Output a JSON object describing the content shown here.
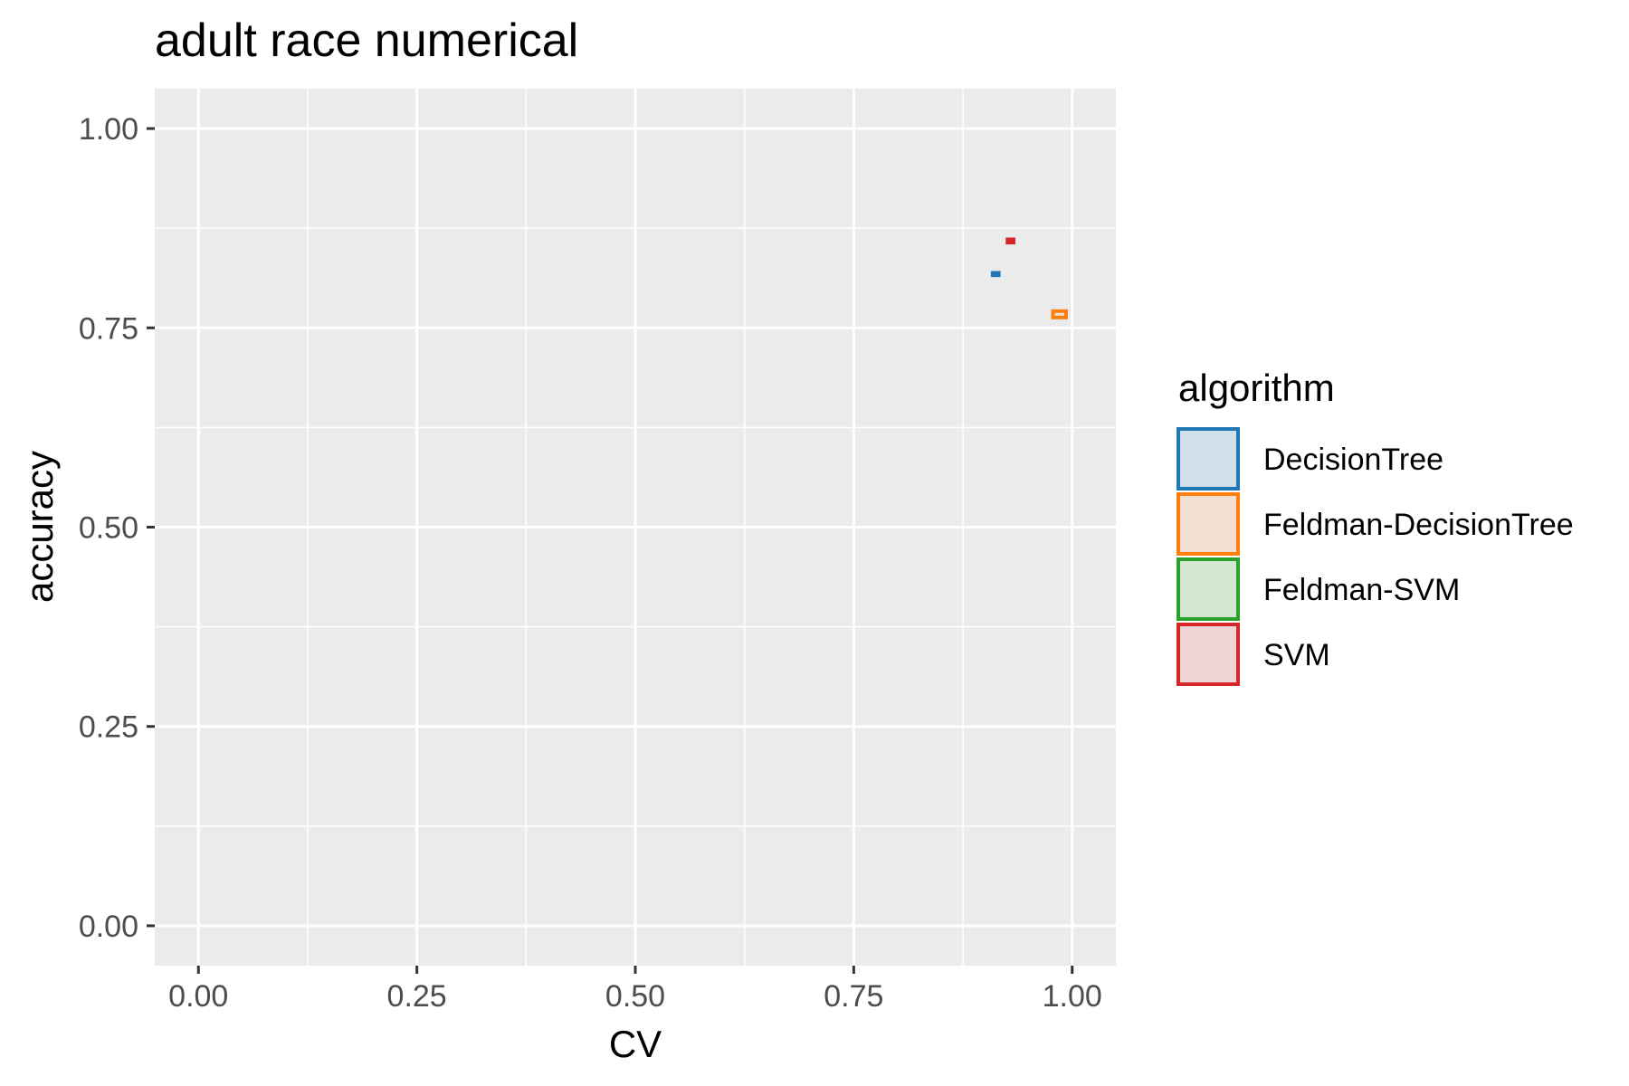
{
  "chart_data": {
    "type": "scatter",
    "title": "adult race numerical",
    "xlabel": "CV",
    "ylabel": "accuracy",
    "xlim": [
      -0.05,
      1.05
    ],
    "ylim": [
      -0.05,
      1.05
    ],
    "x_ticks": [
      0,
      0.25,
      0.5,
      0.75,
      1.0
    ],
    "y_ticks": [
      0,
      0.25,
      0.5,
      0.75,
      1.0
    ],
    "x_tick_labels": [
      "0.00",
      "0.25",
      "0.50",
      "0.75",
      "1.00"
    ],
    "y_tick_labels": [
      "0.00",
      "0.25",
      "0.50",
      "0.75",
      "1.00"
    ],
    "grid": true,
    "legend": {
      "title": "algorithm",
      "position": "right"
    },
    "series": [
      {
        "name": "DecisionTree",
        "color": "#1f77b4",
        "fill": "#d1dfe9",
        "x_range": [
          0.909,
          0.916
        ],
        "y_range": [
          0.816,
          0.819
        ]
      },
      {
        "name": "Feldman-DecisionTree",
        "color": "#ff7f0e",
        "fill": "#f3e0d2",
        "x_range": [
          0.978,
          0.993
        ],
        "y_range": [
          0.763,
          0.771
        ]
      },
      {
        "name": "Feldman-SVM",
        "color": "#2ca02c",
        "fill": "#d4e5d2",
        "x_range": null,
        "y_range": null
      },
      {
        "name": "SVM",
        "color": "#d62728",
        "fill": "#efd5d6",
        "x_range": [
          0.926,
          0.933
        ],
        "y_range": [
          0.857,
          0.861
        ]
      }
    ]
  }
}
